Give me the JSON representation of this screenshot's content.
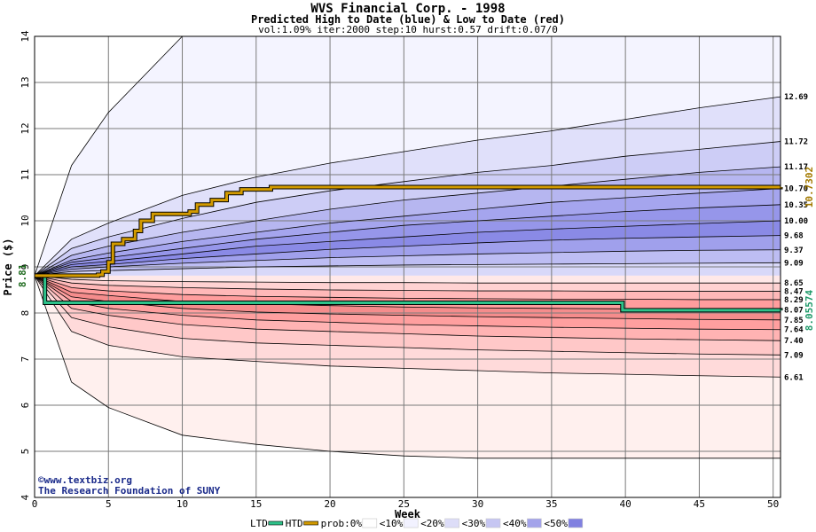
{
  "chart_data": {
    "type": "area",
    "title": "WVS Financial Corp. - 1998",
    "subtitle": "Predicted High to Date (blue) &  Low to Date (red)",
    "params": "vol:1.09% iter:2000 step:10 hurst:0.57 drift:0.07/0",
    "xlabel": "Week",
    "ylabel": "Price ($)",
    "xlim": [
      0,
      50.5
    ],
    "ylim": [
      4,
      14
    ],
    "xticks": [
      0,
      5,
      10,
      15,
      20,
      25,
      30,
      35,
      40,
      45,
      50
    ],
    "yticks": [
      4,
      5,
      6,
      7,
      8,
      9,
      10,
      11,
      12,
      13,
      14
    ],
    "grid": true,
    "start_price": 8.81,
    "start_label": "8.81",
    "weeks": [
      0,
      2.5,
      5,
      10,
      15,
      20,
      25,
      30,
      35,
      40,
      45,
      50.5
    ],
    "upper_bands": [
      {
        "label": "",
        "values": [
          8.81,
          11.2,
          12.35,
          14.0,
          14.0,
          14.0,
          14.0,
          14.0,
          14.0,
          14.0,
          14.0,
          14.0
        ]
      },
      {
        "label": "12.69",
        "values": [
          8.81,
          9.6,
          9.95,
          10.55,
          10.95,
          11.25,
          11.5,
          11.75,
          11.95,
          12.2,
          12.45,
          12.69
        ]
      },
      {
        "label": "11.72",
        "values": [
          8.81,
          9.4,
          9.65,
          10.05,
          10.4,
          10.65,
          10.85,
          11.05,
          11.2,
          11.4,
          11.55,
          11.72
        ]
      },
      {
        "label": "11.17",
        "values": [
          8.81,
          9.25,
          9.45,
          9.75,
          10.0,
          10.25,
          10.45,
          10.6,
          10.75,
          10.9,
          11.05,
          11.17
        ]
      },
      {
        "label": "10.70",
        "values": [
          8.81,
          9.15,
          9.3,
          9.55,
          9.75,
          9.95,
          10.1,
          10.25,
          10.4,
          10.5,
          10.6,
          10.7
        ]
      },
      {
        "label": "10.35",
        "values": [
          8.81,
          9.1,
          9.2,
          9.4,
          9.6,
          9.75,
          9.9,
          10.0,
          10.1,
          10.2,
          10.28,
          10.35
        ]
      },
      {
        "label": "10.00",
        "values": [
          8.81,
          9.05,
          9.12,
          9.28,
          9.45,
          9.55,
          9.65,
          9.75,
          9.82,
          9.88,
          9.94,
          10.0
        ]
      },
      {
        "label": "9.68",
        "values": [
          8.81,
          9.0,
          9.05,
          9.18,
          9.28,
          9.38,
          9.45,
          9.52,
          9.58,
          9.62,
          9.65,
          9.68
        ]
      },
      {
        "label": "9.37",
        "values": [
          8.81,
          8.95,
          9.0,
          9.08,
          9.14,
          9.2,
          9.24,
          9.28,
          9.31,
          9.34,
          9.36,
          9.37
        ]
      },
      {
        "label": "9.09",
        "values": [
          8.81,
          8.9,
          8.92,
          8.96,
          9.0,
          9.02,
          9.04,
          9.05,
          9.06,
          9.07,
          9.08,
          9.09
        ]
      }
    ],
    "lower_bands": [
      {
        "label": "",
        "values": [
          8.81,
          6.5,
          5.95,
          5.35,
          5.15,
          5.0,
          4.9,
          4.85,
          4.85,
          4.85,
          4.85,
          4.85
        ]
      },
      {
        "label": "6.61",
        "values": [
          8.81,
          7.6,
          7.3,
          7.05,
          6.95,
          6.85,
          6.8,
          6.75,
          6.7,
          6.67,
          6.64,
          6.61
        ]
      },
      {
        "label": "7.09",
        "values": [
          8.81,
          7.9,
          7.7,
          7.45,
          7.35,
          7.3,
          7.25,
          7.2,
          7.17,
          7.14,
          7.11,
          7.09
        ]
      },
      {
        "label": "7.40",
        "values": [
          8.81,
          8.1,
          7.95,
          7.75,
          7.65,
          7.6,
          7.55,
          7.5,
          7.47,
          7.44,
          7.42,
          7.4
        ]
      },
      {
        "label": "7.64",
        "values": [
          8.81,
          8.25,
          8.1,
          7.95,
          7.85,
          7.8,
          7.75,
          7.72,
          7.69,
          7.67,
          7.65,
          7.64
        ]
      },
      {
        "label": "7.85",
        "values": [
          8.81,
          8.35,
          8.25,
          8.1,
          8.02,
          7.98,
          7.95,
          7.92,
          7.9,
          7.88,
          7.86,
          7.85
        ]
      },
      {
        "label": "8.07",
        "values": [
          8.81,
          8.45,
          8.38,
          8.25,
          8.2,
          8.16,
          8.13,
          8.11,
          8.1,
          8.09,
          8.08,
          8.07
        ]
      },
      {
        "label": "8.29",
        "values": [
          8.81,
          8.55,
          8.48,
          8.4,
          8.36,
          8.34,
          8.32,
          8.31,
          8.3,
          8.3,
          8.29,
          8.29
        ]
      },
      {
        "label": "8.47",
        "values": [
          8.81,
          8.65,
          8.6,
          8.55,
          8.52,
          8.5,
          8.49,
          8.48,
          8.48,
          8.47,
          8.47,
          8.47
        ]
      },
      {
        "label": "8.65",
        "values": [
          8.81,
          8.73,
          8.7,
          8.68,
          8.67,
          8.66,
          8.66,
          8.65,
          8.65,
          8.65,
          8.65,
          8.65
        ]
      }
    ],
    "htd_series": {
      "name": "HTD",
      "end_label": "10.7302",
      "x": [
        0,
        4,
        4.3,
        4.6,
        5.0,
        5.3,
        6.0,
        6.8,
        7.2,
        8.0,
        10.5,
        11.0,
        12.0,
        13.0,
        14.0,
        16.0,
        50.5
      ],
      "y": [
        8.81,
        8.81,
        8.83,
        8.9,
        9.1,
        9.5,
        9.6,
        9.78,
        10.0,
        10.15,
        10.2,
        10.35,
        10.45,
        10.6,
        10.68,
        10.73,
        10.7302
      ]
    },
    "ltd_series": {
      "name": "LTD",
      "end_label": "8.05574",
      "x": [
        0,
        0.7,
        39.5,
        39.8,
        50.5
      ],
      "y": [
        8.81,
        8.22,
        8.22,
        8.06,
        8.05574
      ]
    },
    "legend": [
      {
        "label": "LTD",
        "color": "#2ec28a"
      },
      {
        "label": "HTD",
        "color": "#d29a00"
      },
      {
        "label": "prob:0%",
        "color": "#ffffff"
      },
      {
        "label": "<10%",
        "color": "#f2f2ff"
      },
      {
        "label": "<20%",
        "color": "#ddddf8"
      },
      {
        "label": "<30%",
        "color": "#c6c6f2"
      },
      {
        "label": "<40%",
        "color": "#a3a3ea"
      },
      {
        "label": "<50%",
        "color": "#8080e0"
      }
    ],
    "colors": {
      "upper": [
        "#f4f4ff",
        "#e0e0fa",
        "#cdcdf6",
        "#b6b6f0",
        "#a5a5ee",
        "#9696ea",
        "#8a8ae6",
        "#a0a0ec",
        "#bdbdf3",
        "#d8d8f9"
      ],
      "lower": [
        "#fff0ee",
        "#ffdada",
        "#ffc8c8",
        "#ffb3b3",
        "#ff9f9f",
        "#f58c8c",
        "#ff9d9d",
        "#ffb8b8",
        "#ffd2d2",
        "#ffe8e8"
      ],
      "htd": "#d29a00",
      "ltd": "#2ec28a",
      "grid": "#7a7a7a"
    }
  },
  "credits": {
    "line1": "©www.textbiz.org",
    "line2": "The Research Foundation of SUNY"
  }
}
